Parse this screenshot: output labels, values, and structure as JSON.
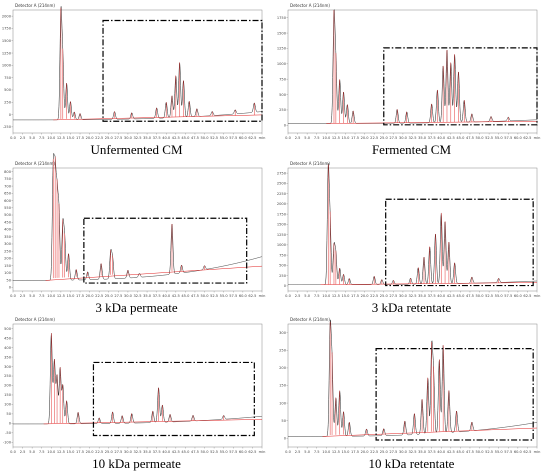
{
  "chart_data": [
    {
      "type": "line",
      "caption": "Unfermented CM",
      "header": "Detector A (214nm)",
      "xlim": [
        0,
        65
      ],
      "ylim": [
        -250,
        2100
      ],
      "x_ticks": [
        "0.0",
        "2.5",
        "5.0",
        "7.5",
        "10.0",
        "12.5",
        "15.0",
        "17.5",
        "20.0",
        "22.5",
        "25.0",
        "27.5",
        "30.0",
        "32.5",
        "35.0",
        "37.5",
        "40.0",
        "42.5",
        "45.0",
        "47.5",
        "50.0",
        "52.5",
        "55.0",
        "57.5",
        "60.0",
        "62.5",
        "min"
      ],
      "y_ticks": [
        "2000",
        "1750",
        "1500",
        "1250",
        "1000",
        "750",
        "500",
        "250",
        "0",
        "-250"
      ],
      "peaks": [
        [
          12.5,
          2000
        ],
        [
          13.0,
          1100
        ],
        [
          14.0,
          700
        ],
        [
          15.0,
          350
        ],
        [
          16.0,
          150
        ],
        [
          17.5,
          120
        ],
        [
          26.5,
          150
        ],
        [
          31.0,
          120
        ],
        [
          37.5,
          200
        ],
        [
          40.0,
          300
        ],
        [
          41.5,
          420
        ],
        [
          42.5,
          800
        ],
        [
          43.5,
          1050
        ],
        [
          44.5,
          700
        ],
        [
          46.0,
          300
        ],
        [
          48.0,
          150
        ],
        [
          52.0,
          80
        ],
        [
          58.0,
          80
        ],
        [
          63.0,
          180
        ]
      ],
      "baseline_end": 160,
      "box_x": [
        23.5,
        65
      ],
      "box_y": [
        -25,
        1900
      ]
    },
    {
      "type": "line",
      "caption": "Fermented CM",
      "header": "Detector A (214nm)",
      "xlim": [
        0,
        65
      ],
      "ylim": [
        -150,
        1800
      ],
      "x_ticks": [
        "0.0",
        "2.5",
        "5.0",
        "7.5",
        "10.0",
        "12.5",
        "15.0",
        "17.5",
        "20.0",
        "22.5",
        "25.0",
        "27.5",
        "30.0",
        "32.5",
        "35.0",
        "37.5",
        "40.0",
        "42.5",
        "45.0",
        "47.5",
        "50.0",
        "52.5",
        "55.0",
        "57.5",
        "60.0",
        "62.5",
        "min"
      ],
      "y_ticks": [
        "1750",
        "1500",
        "1250",
        "1000",
        "750",
        "500",
        "250",
        "0"
      ],
      "peaks": [
        [
          12.0,
          1680
        ],
        [
          12.5,
          900
        ],
        [
          13.5,
          700
        ],
        [
          14.5,
          500
        ],
        [
          15.5,
          300
        ],
        [
          17.0,
          200
        ],
        [
          28.5,
          220
        ],
        [
          31.0,
          180
        ],
        [
          37.5,
          300
        ],
        [
          39.0,
          520
        ],
        [
          40.5,
          900
        ],
        [
          41.5,
          1150
        ],
        [
          42.5,
          950
        ],
        [
          43.5,
          1080
        ],
        [
          44.5,
          800
        ],
        [
          46.0,
          350
        ],
        [
          48.0,
          130
        ],
        [
          53.0,
          80
        ],
        [
          57.5,
          60
        ]
      ],
      "baseline_end": 60,
      "box_x": [
        25,
        65
      ],
      "box_y": [
        -20,
        1200
      ]
    },
    {
      "type": "line",
      "caption": "3 kDa permeate",
      "header": "Detector A (214nm)",
      "xlim": [
        0,
        65
      ],
      "ylim": [
        -80,
        850
      ],
      "x_ticks": [
        "0.0",
        "2.5",
        "5.0",
        "7.5",
        "10.0",
        "12.5",
        "15.0",
        "17.5",
        "20.0",
        "22.5",
        "25.0",
        "27.5",
        "30.0",
        "32.5",
        "35.0",
        "37.5",
        "40.0",
        "42.5",
        "45.0",
        "47.5",
        "50.0",
        "52.5",
        "55.0",
        "57.5",
        "60.0",
        "62.5",
        "min"
      ],
      "y_ticks": [
        "800",
        "750",
        "700",
        "650",
        "600",
        "550",
        "500",
        "450",
        "400",
        "350",
        "300",
        "250",
        "200",
        "150",
        "100",
        "50",
        "0"
      ],
      "peaks": [
        [
          10.5,
          820
        ],
        [
          11.0,
          750
        ],
        [
          11.5,
          600
        ],
        [
          12.0,
          500
        ],
        [
          13.0,
          420
        ],
        [
          13.5,
          300
        ],
        [
          14.5,
          200
        ],
        [
          16.5,
          80
        ],
        [
          19.5,
          60
        ],
        [
          23.0,
          120
        ],
        [
          25.5,
          200
        ],
        [
          26.0,
          150
        ],
        [
          30.0,
          60
        ],
        [
          33.0,
          30
        ],
        [
          41.5,
          380
        ],
        [
          44.0,
          60
        ],
        [
          50.0,
          30
        ]
      ],
      "baseline_end": 180,
      "box_x": [
        18.5,
        61
      ],
      "box_y": [
        -20,
        470
      ]
    },
    {
      "type": "line",
      "caption": "3 kDa retentate",
      "header": "Detector A (214nm)",
      "xlim": [
        0,
        65
      ],
      "ylim": [
        -150,
        2800
      ],
      "x_ticks": [
        "0.0",
        "2.5",
        "5.0",
        "7.5",
        "10.0",
        "12.5",
        "15.0",
        "17.5",
        "20.0",
        "22.5",
        "25.0",
        "27.5",
        "30.0",
        "32.5",
        "35.0",
        "37.5",
        "40.0",
        "42.5",
        "45.0",
        "47.5",
        "50.0",
        "52.5",
        "55.0",
        "57.5",
        "60.0",
        "62.5",
        "min"
      ],
      "y_ticks": [
        "2750",
        "2500",
        "2250",
        "2000",
        "1750",
        "1500",
        "1250",
        "1000",
        "750",
        "500",
        "250",
        "0"
      ],
      "peaks": [
        [
          10.5,
          2700
        ],
        [
          11.0,
          1400
        ],
        [
          12.0,
          900
        ],
        [
          12.5,
          700
        ],
        [
          13.5,
          400
        ],
        [
          14.5,
          250
        ],
        [
          16.0,
          150
        ],
        [
          22.5,
          200
        ],
        [
          24.5,
          120
        ],
        [
          27.5,
          100
        ],
        [
          32.0,
          150
        ],
        [
          34.0,
          400
        ],
        [
          35.5,
          650
        ],
        [
          37.0,
          900
        ],
        [
          38.5,
          1200
        ],
        [
          40.0,
          1700
        ],
        [
          41.0,
          1500
        ],
        [
          42.0,
          1000
        ],
        [
          43.5,
          500
        ],
        [
          48.0,
          150
        ],
        [
          55.0,
          100
        ]
      ],
      "baseline_end": 90,
      "box_x": [
        25.5,
        64
      ],
      "box_y": [
        -20,
        2050
      ]
    },
    {
      "type": "line",
      "caption": "10 kDa permeate",
      "header": "Detector A (214nm)",
      "xlim": [
        0,
        65
      ],
      "ylim": [
        -120,
        520
      ],
      "x_ticks": [
        "0.0",
        "2.5",
        "5.0",
        "7.5",
        "10.0",
        "12.5",
        "15.0",
        "17.5",
        "20.0",
        "22.5",
        "25.0",
        "27.5",
        "30.0",
        "32.5",
        "35.0",
        "37.5",
        "40.0",
        "42.5",
        "45.0",
        "47.5",
        "50.0",
        "52.5",
        "55.0",
        "57.5",
        "60.0",
        "62.5",
        "min"
      ],
      "y_ticks": [
        "500",
        "450",
        "400",
        "350",
        "300",
        "250",
        "200",
        "150",
        "100",
        "50",
        "0",
        "-50",
        "-100"
      ],
      "peaks": [
        [
          10.0,
          470
        ],
        [
          10.8,
          330
        ],
        [
          11.5,
          250
        ],
        [
          12.3,
          290
        ],
        [
          13.0,
          200
        ],
        [
          14.0,
          120
        ],
        [
          17.0,
          60
        ],
        [
          22.5,
          30
        ],
        [
          26.0,
          60
        ],
        [
          28.5,
          40
        ],
        [
          31.0,
          50
        ],
        [
          36.5,
          60
        ],
        [
          38.0,
          180
        ],
        [
          39.0,
          90
        ],
        [
          41.0,
          40
        ],
        [
          47.0,
          30
        ],
        [
          55.0,
          20
        ]
      ],
      "baseline_end": 40,
      "box_x": [
        21,
        63
      ],
      "box_y": [
        -60,
        320
      ]
    },
    {
      "type": "line",
      "caption": "10 kDa retentate",
      "header": "Detector A (214nm)",
      "xlim": [
        0,
        65
      ],
      "ylim": [
        -30,
        320
      ],
      "x_ticks": [
        "0.0",
        "2.5",
        "5.0",
        "7.5",
        "10.0",
        "12.5",
        "15.0",
        "17.5",
        "20.0",
        "22.5",
        "25.0",
        "27.5",
        "30.0",
        "32.5",
        "35.0",
        "37.5",
        "40.0",
        "42.5",
        "45.0",
        "47.5",
        "50.0",
        "52.5",
        "55.0",
        "57.5",
        "60.0",
        "62.5",
        "min"
      ],
      "y_ticks": [
        "300",
        "250",
        "200",
        "150",
        "100",
        "50",
        "0"
      ],
      "peaks": [
        [
          11.0,
          300
        ],
        [
          11.5,
          200
        ],
        [
          12.5,
          110
        ],
        [
          13.5,
          130
        ],
        [
          14.5,
          70
        ],
        [
          16.0,
          40
        ],
        [
          20.5,
          20
        ],
        [
          25.0,
          20
        ],
        [
          30.5,
          40
        ],
        [
          33.0,
          60
        ],
        [
          35.0,
          100
        ],
        [
          36.5,
          160
        ],
        [
          37.5,
          240
        ],
        [
          38.0,
          160
        ],
        [
          39.5,
          210
        ],
        [
          40.5,
          250
        ],
        [
          42.0,
          120
        ],
        [
          44.0,
          60
        ],
        [
          48.0,
          25
        ]
      ],
      "baseline_end": 40,
      "box_x": [
        23,
        64
      ],
      "box_y": [
        -10,
        250
      ]
    }
  ]
}
